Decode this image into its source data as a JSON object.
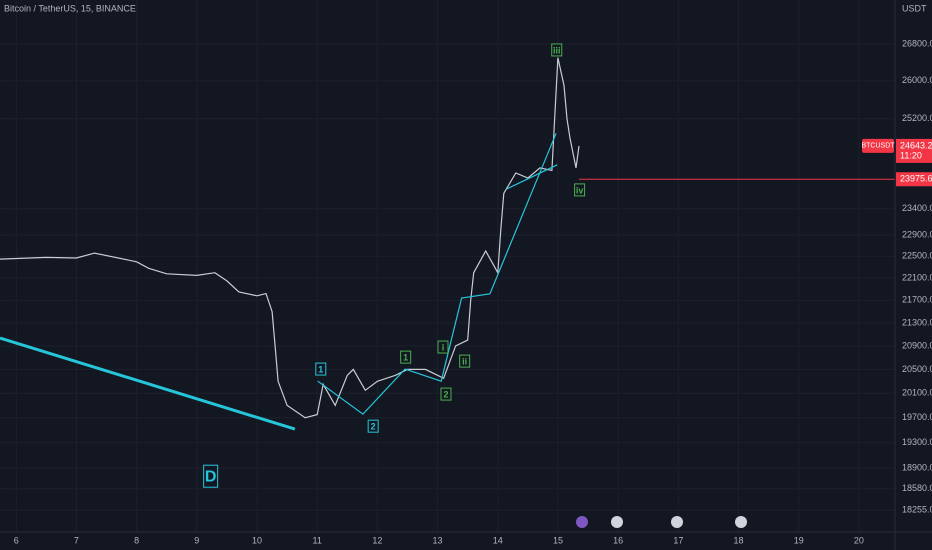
{
  "chart_data": {
    "type": "line",
    "title": "Bitcoin / TetherUS, 15, BINANCE",
    "y_unit": "USDT",
    "log_y": true,
    "grid": true,
    "xlim": [
      5.73,
      20.6
    ],
    "ylim": [
      17930,
      27790
    ],
    "xticks": [
      6,
      7,
      8,
      9,
      10,
      11,
      12,
      13,
      14,
      15,
      16,
      17,
      18,
      19,
      20
    ],
    "yticks": [
      {
        "value": 18255,
        "label": "18255.00"
      },
      {
        "value": 18580,
        "label": "18580.00"
      },
      {
        "value": 18900,
        "label": "18900.00"
      },
      {
        "value": 19300,
        "label": "19300.00"
      },
      {
        "value": 19700,
        "label": "19700.00"
      },
      {
        "value": 20100,
        "label": "20100.00"
      },
      {
        "value": 20500,
        "label": "20500.00"
      },
      {
        "value": 20900,
        "label": "20900.00"
      },
      {
        "value": 21300,
        "label": "21300.00"
      },
      {
        "value": 21700,
        "label": "21700.00"
      },
      {
        "value": 22100,
        "label": "22100.00"
      },
      {
        "value": 22500,
        "label": "22500.00"
      },
      {
        "value": 22900,
        "label": "22900.00"
      },
      {
        "value": 23400,
        "label": "23400.00"
      },
      {
        "value": 25200,
        "label": "25200.00"
      },
      {
        "value": 26000,
        "label": "26000.00"
      },
      {
        "value": 26800,
        "label": "26800.00"
      }
    ],
    "series": [
      {
        "name": "BTCUSDT",
        "color": "#c9ccd4",
        "x": [
          5.73,
          6.5,
          7,
          7.3,
          8,
          8.2,
          8.5,
          9,
          9.3,
          9.5,
          9.7,
          10,
          10.15,
          10.25,
          10.3,
          10.35,
          10.5,
          10.8,
          11,
          11.1,
          11.3,
          11.5,
          11.6,
          11.8,
          12,
          12.3,
          12.5,
          12.8,
          13,
          13.1,
          13.3,
          13.5,
          13.55,
          13.6,
          13.7,
          13.8,
          14,
          14.05,
          14.1,
          14.3,
          14.5,
          14.7,
          14.9,
          15,
          15.1,
          15.15,
          15.2,
          15.3,
          15.35
        ],
        "values": [
          22450,
          22480,
          22470,
          22560,
          22400,
          22280,
          22180,
          22150,
          22200,
          22050,
          21850,
          21780,
          21820,
          21500,
          20900,
          20300,
          19900,
          19700,
          19750,
          20250,
          19900,
          20400,
          20500,
          20150,
          20300,
          20400,
          20500,
          20500,
          20400,
          20350,
          20900,
          21000,
          21700,
          22200,
          22400,
          22600,
          22200,
          23000,
          23700,
          24100,
          24000,
          24200,
          24150,
          26500,
          25900,
          25200,
          24800,
          24200,
          24643.26
        ]
      }
    ],
    "waves": [
      {
        "color": "#26c6da",
        "x": [
          5.73,
          10.63
        ],
        "values": [
          21036,
          19516
        ]
      },
      {
        "color": "#26c6da",
        "x": [
          11.01,
          11.76,
          12.46,
          13.06,
          13.4,
          13.87,
          14.97
        ],
        "values": [
          20302,
          19758,
          20505,
          20302,
          21742,
          21817,
          24900
        ]
      },
      {
        "color": "#26c6da",
        "x": [
          14.15,
          14.99
        ],
        "values": [
          23786,
          24263
        ]
      }
    ],
    "annotations": [
      {
        "text": "1",
        "x": 11.06,
        "y": 20505,
        "color": "#26c6da"
      },
      {
        "text": "2",
        "x": 11.93,
        "y": 19563,
        "color": "#26c6da"
      },
      {
        "text": "1",
        "x": 12.47,
        "y": 20708,
        "color": "#4caf50"
      },
      {
        "text": "2",
        "x": 13.14,
        "y": 20087,
        "color": "#4caf50"
      },
      {
        "text": "i",
        "x": 13.09,
        "y": 20881,
        "color": "#4caf50"
      },
      {
        "text": "ii",
        "x": 13.45,
        "y": 20640,
        "color": "#4caf50"
      },
      {
        "text": "iii",
        "x": 14.98,
        "y": 26670,
        "color": "#4caf50"
      },
      {
        "text": "iv",
        "x": 15.36,
        "y": 23766,
        "color": "#4caf50"
      },
      {
        "text": "D",
        "x": 9.23,
        "y": 18773,
        "color": "#26c6da",
        "big": true
      }
    ],
    "last_price": {
      "value": 24643.26,
      "countdown": "11:20",
      "color": "#f23645"
    },
    "price_line": {
      "value": 23975.67,
      "color": "#f23645"
    }
  }
}
